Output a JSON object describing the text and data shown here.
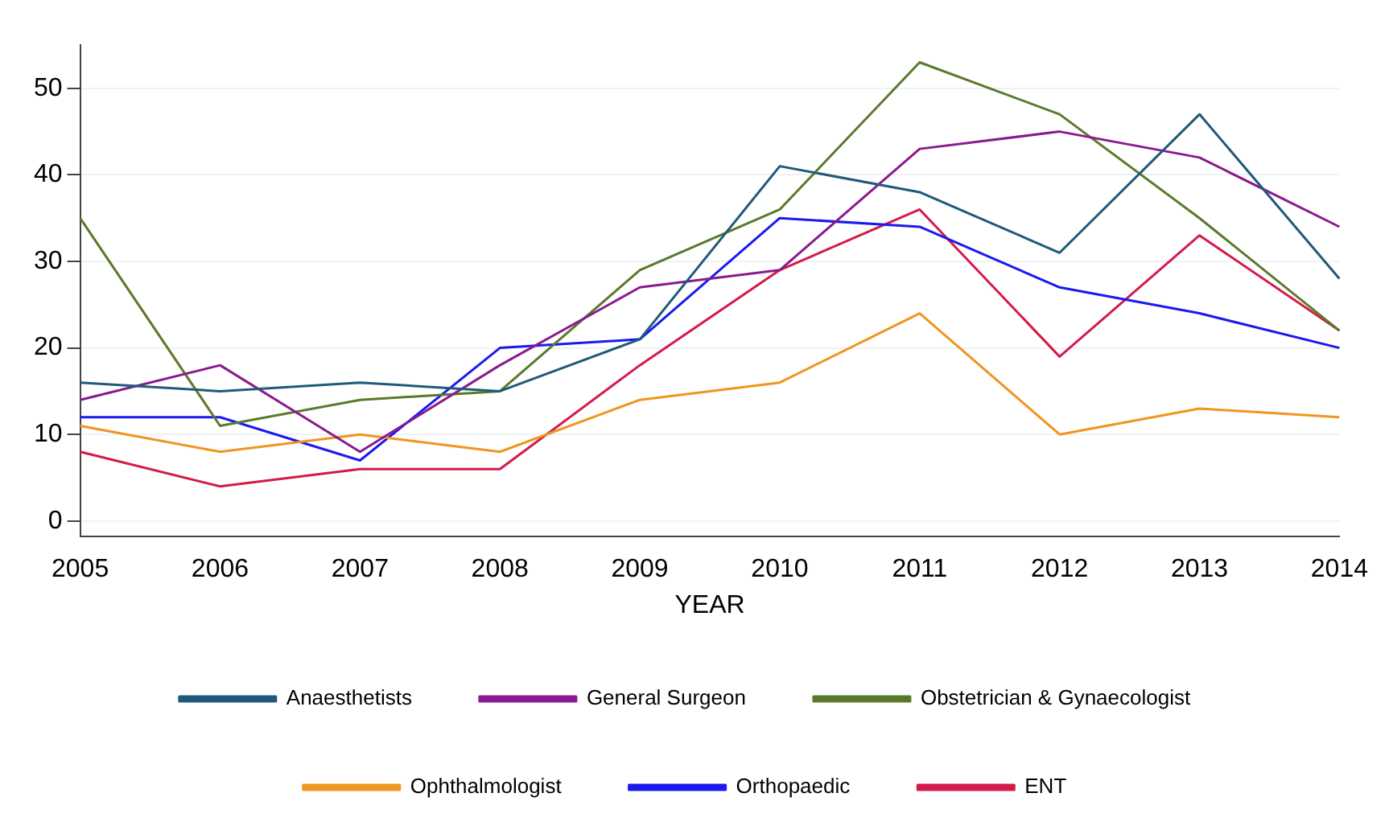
{
  "chart_data": {
    "type": "line",
    "xlabel": "YEAR",
    "categories": [
      "2005",
      "2006",
      "2007",
      "2008",
      "2009",
      "2010",
      "2011",
      "2012",
      "2013",
      "2014"
    ],
    "series": [
      {
        "name": "Anaesthetists",
        "color": "#1f5a7a",
        "values": [
          16,
          15,
          16,
          15,
          21,
          41,
          38,
          31,
          47,
          28
        ]
      },
      {
        "name": "General Surgeon",
        "color": "#8a1a8f",
        "values": [
          14,
          18,
          8,
          18,
          27,
          29,
          43,
          45,
          42,
          34
        ]
      },
      {
        "name": "Obstetrician & Gynaecologist",
        "color": "#5a7a2a",
        "values": [
          35,
          11,
          14,
          15,
          29,
          36,
          53,
          47,
          35,
          22
        ]
      },
      {
        "name": "Ophthalmologist",
        "color": "#f0951e",
        "values": [
          11,
          8,
          10,
          8,
          14,
          16,
          24,
          10,
          13,
          12
        ]
      },
      {
        "name": "Orthopaedic",
        "color": "#1a1af0",
        "values": [
          12,
          12,
          7,
          20,
          21,
          35,
          34,
          27,
          24,
          20
        ]
      },
      {
        "name": "ENT",
        "color": "#d41a4a",
        "values": [
          8,
          4,
          6,
          6,
          18,
          29,
          36,
          19,
          33,
          22
        ]
      }
    ],
    "ylim": [
      -1.8,
      55
    ],
    "yticks": [
      0,
      10,
      20,
      30,
      40,
      50
    ],
    "grid": "y",
    "legend": "bottom",
    "marker": "none",
    "line_style": "solid"
  }
}
